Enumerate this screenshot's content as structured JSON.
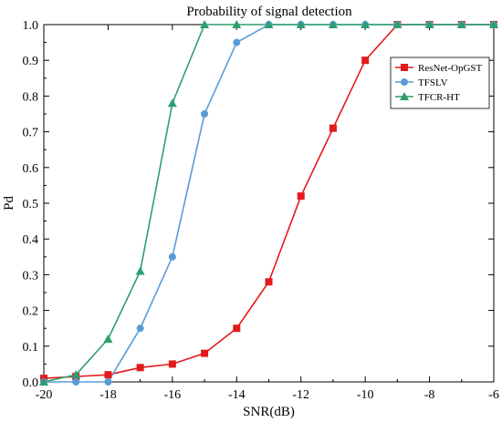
{
  "chart_data": {
    "type": "line",
    "title": "Probability of signal detection",
    "xlabel": "SNR(dB)",
    "ylabel": "Pd",
    "xlim": [
      -20,
      -6
    ],
    "ylim": [
      0,
      1
    ],
    "x_ticks": [
      -20,
      -18,
      -16,
      -14,
      -12,
      -10,
      -8,
      -6
    ],
    "x_tick_labels": [
      "-20",
      "-18",
      "-16",
      "-14",
      "-12",
      "-10",
      "-8",
      "-6"
    ],
    "y_ticks": [
      0,
      0.1,
      0.2,
      0.3,
      0.4,
      0.5,
      0.6,
      0.7,
      0.8,
      0.9,
      1.0
    ],
    "y_tick_labels": [
      "0.0",
      "0.1",
      "0.2",
      "0.3",
      "0.4",
      "0.5",
      "0.6",
      "0.7",
      "0.8",
      "0.9",
      "1.0"
    ],
    "grid": false,
    "legend_position": "top-right",
    "x": [
      -20,
      -19,
      -18,
      -17,
      -16,
      -15,
      -14,
      -13,
      -12,
      -11,
      -10,
      -9,
      -8,
      -7,
      -6
    ],
    "series": [
      {
        "name": "ResNet-OpGST",
        "color": "#e31a1c",
        "marker": "square",
        "values": [
          0.01,
          0.015,
          0.02,
          0.04,
          0.05,
          0.08,
          0.15,
          0.28,
          0.52,
          0.71,
          0.9,
          1.0,
          1.0,
          1.0,
          1.0
        ]
      },
      {
        "name": "TFSLV",
        "color": "#5b9bd5",
        "marker": "circle",
        "values": [
          0.0,
          0.0,
          0.0,
          0.15,
          0.35,
          0.75,
          0.95,
          1.0,
          1.0,
          1.0,
          1.0,
          1.0,
          1.0,
          1.0,
          1.0
        ]
      },
      {
        "name": "TFCR-HT",
        "color": "#2e9e6e",
        "marker": "triangle",
        "values": [
          0.0,
          0.02,
          0.12,
          0.31,
          0.78,
          1.0,
          1.0,
          1.0,
          1.0,
          1.0,
          1.0,
          1.0,
          1.0,
          1.0,
          1.0
        ]
      }
    ]
  }
}
